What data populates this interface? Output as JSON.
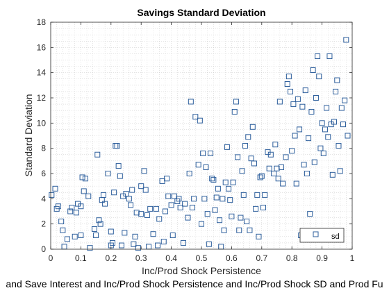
{
  "chart_data": {
    "type": "scatter",
    "title": "Savings Standard Deviation",
    "xlabel": "Inc/Prod Shock Persistence",
    "ylabel": "Standard Deviation",
    "footer_caption": "and Save Interest and Inc/Prod Shock Persistence and Inc/Prod Shock SD and Prod Fu",
    "xlim": [
      0,
      1
    ],
    "ylim": [
      0,
      18
    ],
    "xticks": [
      "0",
      "0.1",
      "0.2",
      "0.3",
      "0.4",
      "0.5",
      "0.6",
      "0.7",
      "0.8",
      "0.9",
      "1"
    ],
    "yticks": [
      "0",
      "2",
      "4",
      "6",
      "8",
      "10",
      "12",
      "14",
      "16",
      "18"
    ],
    "grid": "minor-dotted",
    "legend": {
      "placement": "bottom-right",
      "label": "sd"
    },
    "marker_color": "#2b5d9b",
    "series": [
      {
        "name": "sd",
        "points": [
          [
            0.003,
            4.3
          ],
          [
            0.015,
            4.8
          ],
          [
            0.02,
            3.2
          ],
          [
            0.025,
            3.4
          ],
          [
            0.035,
            2.2
          ],
          [
            0.04,
            1.5
          ],
          [
            0.045,
            0.2
          ],
          [
            0.055,
            0.8
          ],
          [
            0.065,
            3.0
          ],
          [
            0.07,
            3.3
          ],
          [
            0.08,
            1.0
          ],
          [
            0.085,
            2.9
          ],
          [
            0.09,
            3.6
          ],
          [
            0.1,
            3.4
          ],
          [
            0.1,
            1.1
          ],
          [
            0.105,
            5.7
          ],
          [
            0.11,
            4.6
          ],
          [
            0.115,
            5.6
          ],
          [
            0.125,
            4.2
          ],
          [
            0.13,
            0.1
          ],
          [
            0.145,
            1.6
          ],
          [
            0.15,
            1.1
          ],
          [
            0.155,
            7.5
          ],
          [
            0.16,
            2.3
          ],
          [
            0.165,
            2.0
          ],
          [
            0.17,
            3.9
          ],
          [
            0.175,
            4.3
          ],
          [
            0.18,
            3.6
          ],
          [
            0.19,
            6.0
          ],
          [
            0.2,
            0.3
          ],
          [
            0.2,
            1.4
          ],
          [
            0.205,
            0.5
          ],
          [
            0.21,
            4.5
          ],
          [
            0.215,
            8.2
          ],
          [
            0.22,
            8.2
          ],
          [
            0.225,
            6.6
          ],
          [
            0.23,
            5.8
          ],
          [
            0.235,
            0.3
          ],
          [
            0.24,
            4.2
          ],
          [
            0.245,
            1.3
          ],
          [
            0.25,
            4.4
          ],
          [
            0.26,
            4.0
          ],
          [
            0.265,
            3.5
          ],
          [
            0.27,
            4.7
          ],
          [
            0.275,
            0.4
          ],
          [
            0.28,
            1.0
          ],
          [
            0.285,
            2.9
          ],
          [
            0.29,
            0.1
          ],
          [
            0.3,
            2.8
          ],
          [
            0.3,
            5.0
          ],
          [
            0.31,
            6.2
          ],
          [
            0.315,
            4.7
          ],
          [
            0.32,
            2.7
          ],
          [
            0.325,
            0.2
          ],
          [
            0.33,
            3.2
          ],
          [
            0.34,
            1.2
          ],
          [
            0.35,
            3.2
          ],
          [
            0.355,
            0.3
          ],
          [
            0.36,
            2.4
          ],
          [
            0.37,
            5.4
          ],
          [
            0.375,
            0.6
          ],
          [
            0.38,
            3.0
          ],
          [
            0.385,
            5.6
          ],
          [
            0.39,
            4.2
          ],
          [
            0.4,
            3.5
          ],
          [
            0.405,
            1.1
          ],
          [
            0.41,
            4.2
          ],
          [
            0.42,
            3.8
          ],
          [
            0.425,
            4.0
          ],
          [
            0.43,
            3.3
          ],
          [
            0.44,
            0.5
          ],
          [
            0.445,
            3.6
          ],
          [
            0.455,
            2.5
          ],
          [
            0.46,
            6.0
          ],
          [
            0.465,
            11.7
          ],
          [
            0.47,
            3.3
          ],
          [
            0.475,
            4.0
          ],
          [
            0.48,
            10.5
          ],
          [
            0.49,
            6.7
          ],
          [
            0.495,
            10.2
          ],
          [
            0.5,
            2.0
          ],
          [
            0.505,
            7.6
          ],
          [
            0.51,
            4.0
          ],
          [
            0.515,
            6.5
          ],
          [
            0.52,
            2.8
          ],
          [
            0.525,
            0.4
          ],
          [
            0.53,
            7.6
          ],
          [
            0.535,
            5.6
          ],
          [
            0.54,
            5.5
          ],
          [
            0.545,
            3.1
          ],
          [
            0.55,
            4.1
          ],
          [
            0.555,
            4.8
          ],
          [
            0.56,
            2.3
          ],
          [
            0.565,
            0.2
          ],
          [
            0.57,
            4.0
          ],
          [
            0.575,
            1.5
          ],
          [
            0.58,
            5.3
          ],
          [
            0.585,
            8.1
          ],
          [
            0.59,
            4.8
          ],
          [
            0.595,
            3.9
          ],
          [
            0.6,
            2.6
          ],
          [
            0.605,
            5.3
          ],
          [
            0.61,
            10.9
          ],
          [
            0.615,
            11.7
          ],
          [
            0.62,
            7.3
          ],
          [
            0.625,
            1.5
          ],
          [
            0.63,
            2.5
          ],
          [
            0.635,
            6.2
          ],
          [
            0.64,
            4.3
          ],
          [
            0.645,
            8.2
          ],
          [
            0.65,
            2.2
          ],
          [
            0.655,
            8.9
          ],
          [
            0.66,
            1.5
          ],
          [
            0.665,
            7.2
          ],
          [
            0.67,
            9.7
          ],
          [
            0.675,
            6.8
          ],
          [
            0.68,
            3.2
          ],
          [
            0.685,
            4.3
          ],
          [
            0.69,
            1.0
          ],
          [
            0.695,
            5.7
          ],
          [
            0.7,
            5.8
          ],
          [
            0.705,
            3.3
          ],
          [
            0.71,
            4.3
          ],
          [
            0.72,
            7.7
          ],
          [
            0.725,
            6.4
          ],
          [
            0.73,
            7.5
          ],
          [
            0.74,
            6.0
          ],
          [
            0.745,
            8.3
          ],
          [
            0.75,
            6.4
          ],
          [
            0.755,
            5.6
          ],
          [
            0.76,
            11.7
          ],
          [
            0.765,
            6.5
          ],
          [
            0.77,
            5.2
          ],
          [
            0.78,
            7.3
          ],
          [
            0.785,
            13.1
          ],
          [
            0.79,
            13.7
          ],
          [
            0.795,
            12.5
          ],
          [
            0.8,
            7.8
          ],
          [
            0.805,
            11.5
          ],
          [
            0.81,
            9.0
          ],
          [
            0.815,
            5.2
          ],
          [
            0.82,
            11.9
          ],
          [
            0.825,
            9.5
          ],
          [
            0.83,
            1.1
          ],
          [
            0.835,
            11.3
          ],
          [
            0.84,
            6.7
          ],
          [
            0.845,
            12.6
          ],
          [
            0.85,
            6.0
          ],
          [
            0.855,
            8.8
          ],
          [
            0.86,
            2.8
          ],
          [
            0.865,
            10.9
          ],
          [
            0.87,
            14.2
          ],
          [
            0.875,
            6.9
          ],
          [
            0.88,
            12.0
          ],
          [
            0.885,
            15.3
          ],
          [
            0.89,
            13.7
          ],
          [
            0.895,
            8.0
          ],
          [
            0.9,
            10.0
          ],
          [
            0.905,
            7.6
          ],
          [
            0.91,
            9.5
          ],
          [
            0.915,
            11.2
          ],
          [
            0.92,
            8.9
          ],
          [
            0.925,
            15.3
          ],
          [
            0.93,
            9.9
          ],
          [
            0.935,
            5.9
          ],
          [
            0.94,
            10.1
          ],
          [
            0.945,
            12.5
          ],
          [
            0.95,
            13.4
          ],
          [
            0.955,
            8.2
          ],
          [
            0.96,
            6.2
          ],
          [
            0.965,
            11.2
          ],
          [
            0.97,
            9.9
          ],
          [
            0.975,
            11.8
          ],
          [
            0.98,
            16.6
          ],
          [
            0.985,
            9.0
          ]
        ]
      }
    ]
  }
}
